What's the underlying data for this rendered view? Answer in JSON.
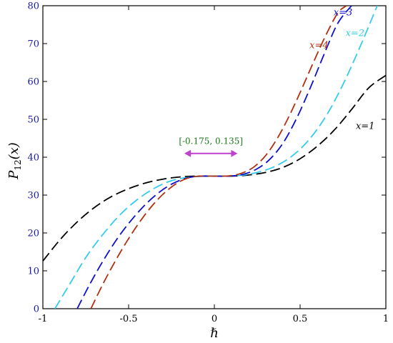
{
  "chart_data": {
    "type": "line",
    "x_axis": {
      "label": "ℏ",
      "range": [
        -1,
        1
      ],
      "ticks": [
        -1,
        -0.5,
        0,
        0.5,
        1
      ],
      "tick_labels": [
        "-1",
        "-0.5",
        "0",
        "0.5",
        "1"
      ]
    },
    "y_axis": {
      "label_main": "P",
      "label_sub": "12",
      "label_arg": "(x)",
      "range": [
        0,
        80
      ],
      "ticks": [
        0,
        10,
        20,
        30,
        40,
        50,
        60,
        70,
        80
      ],
      "tick_labels": [
        "0",
        "10",
        "20",
        "30",
        "40",
        "50",
        "60",
        "70",
        "80"
      ]
    },
    "grid": false,
    "series": [
      {
        "name": "x=1",
        "color": "#000000",
        "x": [
          -1,
          -0.9,
          -0.8,
          -0.7,
          -0.6,
          -0.5,
          -0.4,
          -0.3,
          -0.2,
          -0.1,
          0,
          0.1,
          0.2,
          0.3,
          0.4,
          0.5,
          0.6,
          0.7,
          0.8,
          0.9,
          1
        ],
        "y": [
          12.6,
          18.2,
          22.9,
          26.7,
          29.6,
          31.7,
          33.2,
          34.2,
          34.8,
          35,
          35,
          35,
          35.3,
          36,
          37.3,
          39.6,
          42.9,
          47.2,
          52.6,
          58.3,
          61.6
        ]
      },
      {
        "name": "x=2",
        "color": "#33ccee",
        "x": [
          -0.93,
          -0.85,
          -0.75,
          -0.65,
          -0.55,
          -0.45,
          -0.35,
          -0.25,
          -0.15,
          -0.05,
          0.05,
          0.15,
          0.25,
          0.35,
          0.45,
          0.55,
          0.65,
          0.75,
          0.85,
          0.95
        ],
        "y": [
          0,
          6,
          13.5,
          19.6,
          24.8,
          28.8,
          31.8,
          33.8,
          34.7,
          35,
          35,
          35.2,
          36,
          37.5,
          40.2,
          44.5,
          50.8,
          59.2,
          69.2,
          80
        ]
      },
      {
        "name": "x=3",
        "color": "#1010cc",
        "x": [
          -0.8,
          -0.72,
          -0.64,
          -0.56,
          -0.48,
          -0.4,
          -0.32,
          -0.24,
          -0.16,
          -0.08,
          0,
          0.08,
          0.16,
          0.24,
          0.32,
          0.4,
          0.48,
          0.56,
          0.64,
          0.72,
          0.8
        ],
        "y": [
          0,
          7,
          13.3,
          18.9,
          23.6,
          27.6,
          30.8,
          33.1,
          34.5,
          35,
          35,
          35,
          35.4,
          36.7,
          39.3,
          43.7,
          50.3,
          58.4,
          67.2,
          75.4,
          80
        ]
      },
      {
        "name": "x=4",
        "color": "#b03010",
        "x": [
          -0.72,
          -0.65,
          -0.58,
          -0.51,
          -0.44,
          -0.37,
          -0.3,
          -0.23,
          -0.16,
          -0.09,
          0,
          0.09,
          0.16,
          0.23,
          0.3,
          0.37,
          0.44,
          0.51,
          0.58,
          0.65,
          0.72,
          0.77
        ],
        "y": [
          0,
          6.5,
          12.4,
          17.8,
          22.6,
          26.8,
          30.2,
          32.8,
          34.4,
          35,
          35,
          35.1,
          35.8,
          37.4,
          40.5,
          45.2,
          51.2,
          58.1,
          65.3,
          72.2,
          78.1,
          80
        ]
      }
    ],
    "annotations": [
      {
        "text": "x=1",
        "x": 0.88,
        "y": 47.5,
        "color": "#000000"
      },
      {
        "text": "x=2",
        "x": 0.82,
        "y": 72,
        "color": "#33ccee"
      },
      {
        "text": "x=3",
        "x": 0.75,
        "y": 77.5,
        "color": "#1010cc"
      },
      {
        "text": "x=4",
        "x": 0.61,
        "y": 68.8,
        "color": "#b03010"
      },
      {
        "text": "[-0.175, 0.135]",
        "x": -0.02,
        "y": 43.5,
        "color": "#1a7a1a"
      }
    ],
    "interval_arrow": {
      "from": -0.175,
      "to": 0.135,
      "y": 41,
      "color": "#c040d0"
    }
  }
}
